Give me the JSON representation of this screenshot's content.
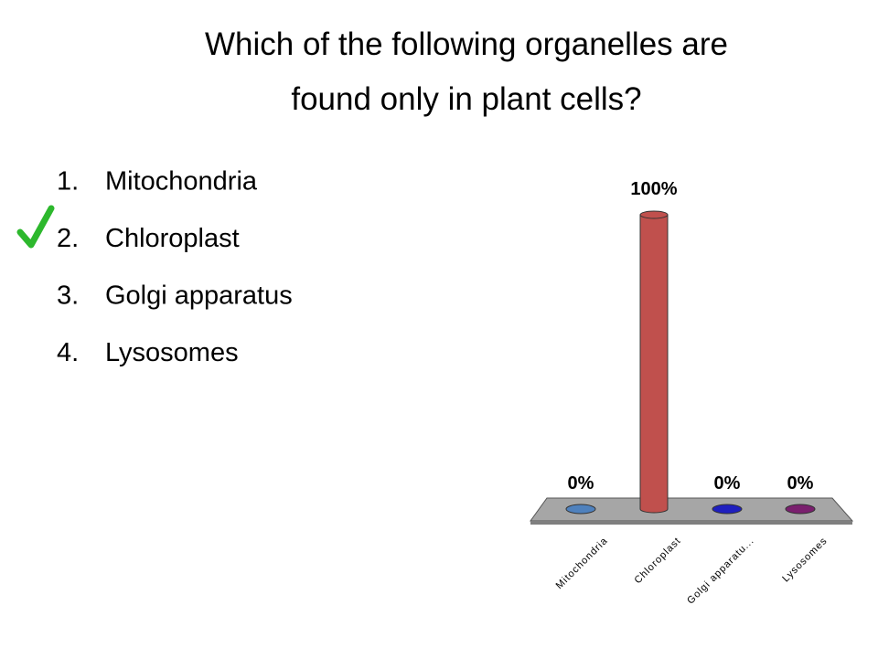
{
  "title": "Which of the following organelles are found only in plant cells?",
  "options": [
    {
      "number": "1.",
      "text": "Mitochondria"
    },
    {
      "number": "2.",
      "text": "Chloroplast"
    },
    {
      "number": "3.",
      "text": "Golgi apparatus"
    },
    {
      "number": "4.",
      "text": "Lysosomes"
    }
  ],
  "chart_data": {
    "type": "bar",
    "categories": [
      "Mitochondria",
      "Chloroplast",
      "Golgi apparatu...",
      "Lysosomes"
    ],
    "values": [
      0,
      100,
      0,
      0
    ],
    "value_labels": [
      "0%",
      "100%",
      "0%",
      "0%"
    ],
    "colors": [
      "#4f81bd",
      "#c0504d",
      "#1f1fbf",
      "#7a1f6e"
    ]
  }
}
